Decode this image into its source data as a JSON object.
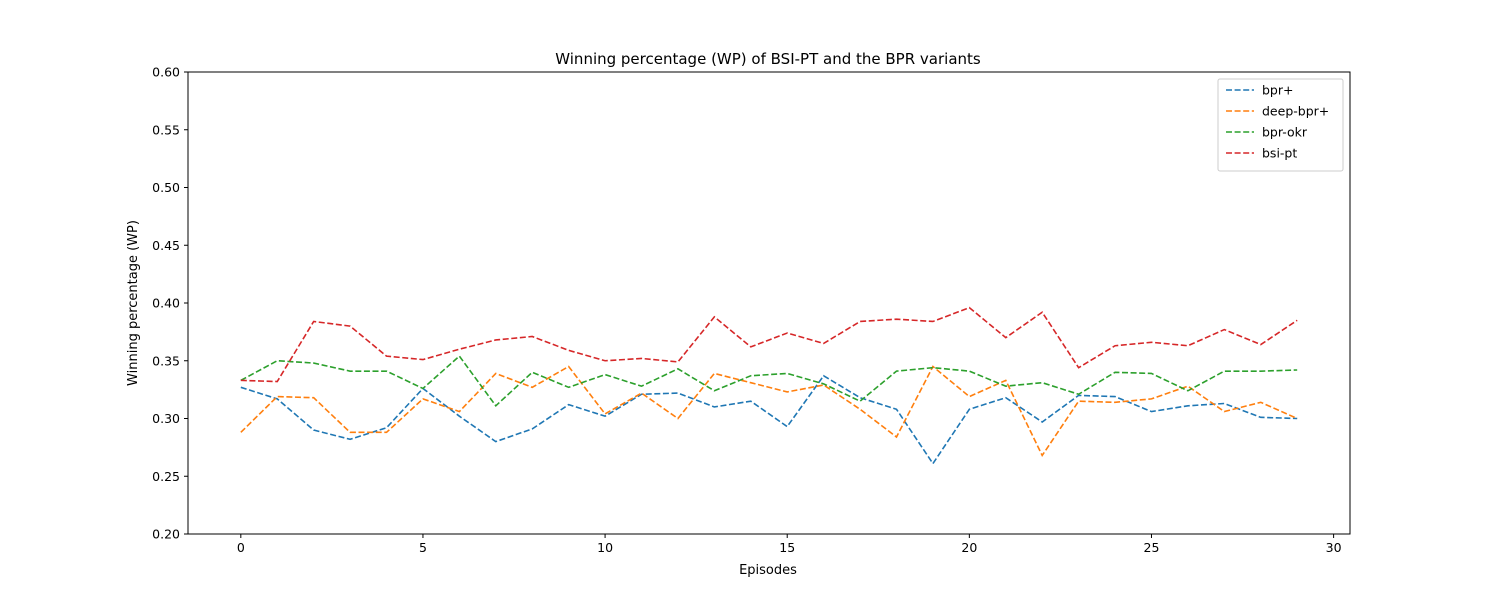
{
  "chart_data": {
    "type": "line",
    "title": "Winning percentage (WP) of BSI-PT and the BPR variants",
    "xlabel": "Episodes",
    "ylabel": "Winning percentage (WP)",
    "xlim": [
      -1.45,
      30.45
    ],
    "ylim": [
      0.2,
      0.6
    ],
    "xticks": [
      0,
      5,
      10,
      15,
      20,
      25,
      30
    ],
    "yticks": [
      0.2,
      0.25,
      0.3,
      0.35,
      0.4,
      0.45,
      0.5,
      0.55,
      0.6
    ],
    "xtick_labels": [
      "0",
      "5",
      "10",
      "15",
      "20",
      "25",
      "30"
    ],
    "ytick_labels": [
      "0.20",
      "0.25",
      "0.30",
      "0.35",
      "0.40",
      "0.45",
      "0.50",
      "0.55",
      "0.60"
    ],
    "line_style": "dashed",
    "grid": false,
    "legend_position": "top-right",
    "x": [
      0,
      1,
      2,
      3,
      4,
      5,
      6,
      7,
      8,
      9,
      10,
      11,
      12,
      13,
      14,
      15,
      16,
      17,
      18,
      19,
      20,
      21,
      22,
      23,
      24,
      25,
      26,
      27,
      28,
      29
    ],
    "series": [
      {
        "name": "bpr+",
        "color": "#1f77b4",
        "values": [
          0.327,
          0.317,
          0.29,
          0.282,
          0.292,
          0.326,
          0.302,
          0.28,
          0.291,
          0.312,
          0.302,
          0.321,
          0.322,
          0.31,
          0.315,
          0.293,
          0.337,
          0.318,
          0.308,
          0.261,
          0.308,
          0.318,
          0.297,
          0.32,
          0.319,
          0.306,
          0.311,
          0.313,
          0.301,
          0.3
        ]
      },
      {
        "name": "deep-bpr+",
        "color": "#ff7f0e",
        "values": [
          0.288,
          0.319,
          0.318,
          0.288,
          0.288,
          0.317,
          0.306,
          0.339,
          0.327,
          0.345,
          0.304,
          0.322,
          0.3,
          0.339,
          0.331,
          0.323,
          0.329,
          0.308,
          0.284,
          0.345,
          0.319,
          0.333,
          0.268,
          0.315,
          0.314,
          0.317,
          0.328,
          0.306,
          0.314,
          0.3
        ]
      },
      {
        "name": "bpr-okr",
        "color": "#2ca02c",
        "values": [
          0.333,
          0.35,
          0.348,
          0.341,
          0.341,
          0.326,
          0.354,
          0.311,
          0.34,
          0.327,
          0.338,
          0.328,
          0.343,
          0.324,
          0.337,
          0.339,
          0.33,
          0.315,
          0.341,
          0.344,
          0.341,
          0.328,
          0.331,
          0.321,
          0.34,
          0.339,
          0.324,
          0.341,
          0.341,
          0.342
        ]
      },
      {
        "name": "bsi-pt",
        "color": "#d62728",
        "values": [
          0.333,
          0.332,
          0.384,
          0.38,
          0.354,
          0.351,
          0.36,
          0.368,
          0.371,
          0.359,
          0.35,
          0.352,
          0.349,
          0.388,
          0.362,
          0.374,
          0.365,
          0.384,
          0.386,
          0.384,
          0.396,
          0.37,
          0.392,
          0.344,
          0.363,
          0.366,
          0.363,
          0.377,
          0.364,
          0.385
        ]
      }
    ]
  }
}
